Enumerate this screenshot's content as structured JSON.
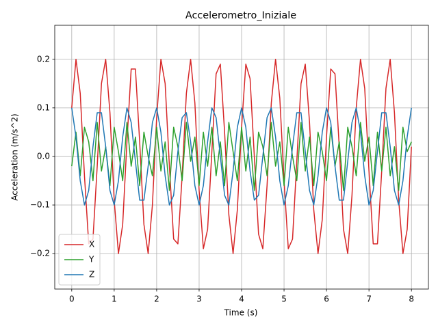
{
  "chart_data": {
    "type": "line",
    "title": "Accelerometro_Iniziale",
    "x_label": "Time (s)",
    "y_label": "Acceleration (m/s^2)",
    "x": [
      0,
      0.1,
      0.2,
      0.3,
      0.4,
      0.5,
      0.6,
      0.7,
      0.8,
      0.9,
      1,
      1.1,
      1.2,
      1.3,
      1.4,
      1.5,
      1.6,
      1.7,
      1.8,
      1.9,
      2,
      2.1,
      2.2,
      2.3,
      2.4,
      2.5,
      2.6,
      2.7,
      2.8,
      2.9,
      3,
      3.1,
      3.2,
      3.3,
      3.4,
      3.5,
      3.6,
      3.7,
      3.8,
      3.9,
      4,
      4.1,
      4.2,
      4.3,
      4.4,
      4.5,
      4.6,
      4.7,
      4.8,
      4.9,
      5,
      5.1,
      5.2,
      5.3,
      5.4,
      5.5,
      5.6,
      5.7,
      5.8,
      5.9,
      6,
      6.1,
      6.2,
      6.3,
      6.4,
      6.5,
      6.6,
      6.7,
      6.8,
      6.9,
      7,
      7.1,
      7.2,
      7.3,
      7.4,
      7.5,
      7.6,
      7.7,
      7.8,
      7.9,
      8
    ],
    "series": [
      {
        "name": "X",
        "color": "#d62728",
        "values": [
          0.1,
          0.2,
          0.13,
          -0.04,
          -0.18,
          -0.17,
          -0.02,
          0.15,
          0.2,
          0.09,
          -0.09,
          -0.2,
          -0.14,
          0.03,
          0.18,
          0.18,
          0.03,
          -0.14,
          -0.2,
          -0.1,
          0.08,
          0.2,
          0.15,
          -0.02,
          -0.17,
          -0.18,
          -0.04,
          0.13,
          0.2,
          0.11,
          -0.07,
          -0.19,
          -0.15,
          0.01,
          0.17,
          0.19,
          0.05,
          -0.12,
          -0.2,
          -0.11,
          0.06,
          0.19,
          0.16,
          0.0,
          -0.16,
          -0.19,
          -0.06,
          0.11,
          0.2,
          0.12,
          -0.05,
          -0.19,
          -0.17,
          -0.01,
          0.15,
          0.19,
          0.07,
          -0.11,
          -0.2,
          -0.13,
          0.04,
          0.18,
          0.17,
          0.02,
          -0.15,
          -0.2,
          -0.08,
          0.1,
          0.2,
          0.14,
          -0.03,
          -0.18,
          -0.18,
          -0.03,
          0.14,
          0.2,
          0.09,
          -0.09,
          -0.2,
          -0.15,
          0.02
        ]
      },
      {
        "name": "Y",
        "color": "#2ca02c",
        "values": [
          -0.02,
          0.05,
          -0.04,
          0.06,
          0.03,
          -0.05,
          0.07,
          -0.03,
          0.02,
          -0.06,
          0.06,
          0.01,
          -0.05,
          0.07,
          -0.02,
          0.04,
          -0.06,
          0.05,
          0.0,
          -0.04,
          0.06,
          -0.03,
          0.03,
          -0.07,
          0.06,
          0.02,
          -0.05,
          0.07,
          -0.01,
          0.04,
          -0.06,
          0.05,
          -0.02,
          0.06,
          -0.04,
          0.03,
          -0.06,
          0.07,
          0.01,
          -0.05,
          0.06,
          -0.03,
          0.04,
          -0.07,
          0.05,
          0.02,
          -0.04,
          0.07,
          -0.02,
          0.03,
          -0.06,
          0.06,
          0.0,
          -0.05,
          0.07,
          -0.03,
          0.04,
          -0.06,
          0.05,
          0.01,
          -0.05,
          0.06,
          -0.02,
          0.03,
          -0.07,
          0.06,
          0.02,
          -0.04,
          0.07,
          -0.01,
          0.04,
          -0.06,
          0.05,
          -0.03,
          0.06,
          -0.04,
          0.02,
          -0.07,
          0.06,
          0.01,
          0.03
        ]
      },
      {
        "name": "Z",
        "color": "#1f77b4",
        "values": [
          0.1,
          0.04,
          -0.05,
          -0.1,
          -0.07,
          0.02,
          0.09,
          0.09,
          0.02,
          -0.07,
          -0.1,
          -0.05,
          0.04,
          0.1,
          0.07,
          -0.01,
          -0.09,
          -0.09,
          -0.02,
          0.07,
          0.1,
          0.05,
          -0.04,
          -0.1,
          -0.08,
          0.01,
          0.08,
          0.09,
          0.03,
          -0.06,
          -0.1,
          -0.06,
          0.03,
          0.1,
          0.08,
          0.0,
          -0.08,
          -0.1,
          -0.03,
          0.06,
          0.1,
          0.06,
          -0.03,
          -0.09,
          -0.08,
          0.0,
          0.08,
          0.1,
          0.04,
          -0.05,
          -0.1,
          -0.06,
          0.02,
          0.09,
          0.09,
          0.01,
          -0.07,
          -0.1,
          -0.04,
          0.05,
          0.1,
          0.07,
          -0.02,
          -0.09,
          -0.09,
          -0.01,
          0.07,
          0.1,
          0.05,
          -0.04,
          -0.1,
          -0.07,
          0.01,
          0.09,
          0.09,
          0.02,
          -0.07,
          -0.1,
          -0.05,
          0.04,
          0.1
        ]
      }
    ],
    "xlim": [
      -0.4,
      8.4
    ],
    "xticks": [
      0,
      1,
      2,
      3,
      4,
      5,
      6,
      7,
      8
    ],
    "ylim": [
      -0.273,
      0.27
    ],
    "yticks": [
      {
        "value": -0.2,
        "label": "−0.2"
      },
      {
        "value": -0.1,
        "label": "−0.1"
      },
      {
        "value": 0,
        "label": "0.0"
      },
      0.1,
      0.2
    ],
    "grid": true,
    "legend": "lower left"
  }
}
